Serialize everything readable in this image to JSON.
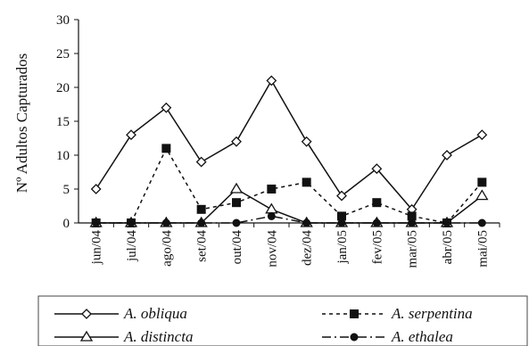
{
  "chart_data": {
    "type": "line",
    "ylabel": "Nº Adultos Capturados",
    "xlabel": "",
    "ylim": [
      0,
      30
    ],
    "yticks": [
      "0",
      "5",
      "10",
      "15",
      "20",
      "25",
      "30"
    ],
    "categories": [
      "jun/04",
      "jul/04",
      "ago/04",
      "set/04",
      "out/04",
      "nov/04",
      "dez/04",
      "jan/05",
      "fev/05",
      "mar/05",
      "abr/05",
      "mai/05"
    ],
    "grid": false,
    "legend_position": "bottom",
    "series": [
      {
        "name": "A. obliqua",
        "marker": "diamond-open",
        "line": "solid",
        "color": "#111111",
        "values": [
          5,
          13,
          17,
          9,
          12,
          21,
          12,
          4,
          8,
          2,
          10,
          13
        ]
      },
      {
        "name": "A. serpentina",
        "marker": "square-filled",
        "line": "dashed",
        "color": "#111111",
        "values": [
          0,
          0,
          11,
          2,
          3,
          5,
          6,
          1,
          3,
          1,
          0,
          6
        ]
      },
      {
        "name": "A. distincta",
        "marker": "triangle-open",
        "line": "solid",
        "color": "#111111",
        "values": [
          0,
          0,
          0,
          0,
          5,
          2,
          0,
          0,
          0,
          0,
          0,
          4
        ]
      },
      {
        "name": "A. ethalea",
        "marker": "circle-filled",
        "line": "dashdot",
        "color": "#111111",
        "values": [
          0,
          0,
          0,
          0,
          0,
          1,
          0,
          0,
          0,
          0,
          0,
          0
        ]
      }
    ]
  }
}
